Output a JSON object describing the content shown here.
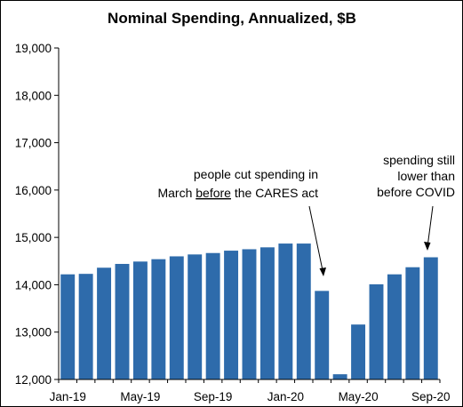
{
  "chart_data": {
    "type": "bar",
    "title": "Nominal Spending, Annualized, $B",
    "xlabel": "",
    "ylabel": "",
    "ylim": [
      12000,
      19000
    ],
    "yticks": [
      12000,
      13000,
      14000,
      15000,
      16000,
      17000,
      18000,
      19000
    ],
    "ytick_labels": [
      "12,000",
      "13,000",
      "14,000",
      "15,000",
      "16,000",
      "17,000",
      "18,000",
      "19,000"
    ],
    "categories": [
      "Jan-19",
      "Feb-19",
      "Mar-19",
      "Apr-19",
      "May-19",
      "Jun-19",
      "Jul-19",
      "Aug-19",
      "Sep-19",
      "Oct-19",
      "Nov-19",
      "Dec-19",
      "Jan-20",
      "Feb-20",
      "Mar-20",
      "Apr-20",
      "May-20",
      "Jun-20",
      "Jul-20",
      "Aug-20",
      "Sep-20"
    ],
    "xtick_labels": [
      "Jan-19",
      "May-19",
      "Sep-19",
      "Jan-20",
      "May-20",
      "Sep-20"
    ],
    "values": [
      14220,
      14230,
      14360,
      14440,
      14490,
      14540,
      14600,
      14640,
      14670,
      14720,
      14750,
      14790,
      14870,
      14870,
      13870,
      12110,
      13160,
      14010,
      14220,
      14370,
      14580
    ],
    "bar_color": "#2e6bab",
    "grid": false,
    "annotations": [
      {
        "lines": [
          "people cut spending in",
          "March ",
          "before",
          " the CARES act"
        ],
        "underline": "before",
        "points_to": "Mar-20"
      },
      {
        "lines": [
          "spending still",
          "lower than",
          "before COVID"
        ],
        "points_to": "Sep-20"
      }
    ]
  }
}
